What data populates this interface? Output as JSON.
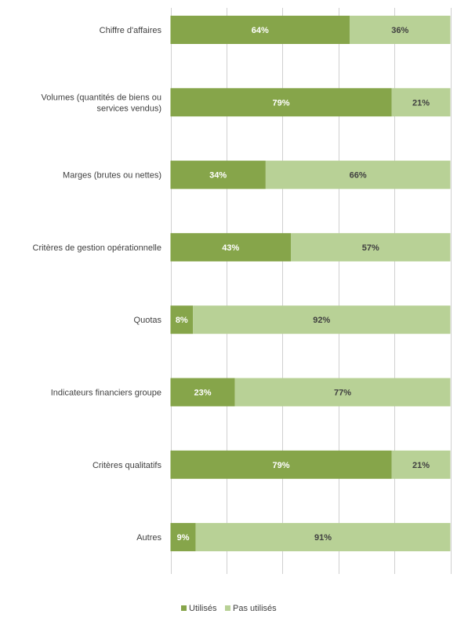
{
  "chart_data": {
    "type": "bar",
    "orientation": "horizontal",
    "stacked": true,
    "percent_stacked": true,
    "categories": [
      "Chiffre d'affaires",
      "Volumes (quantités de biens ou services vendus)",
      "Marges (brutes ou nettes)",
      "Critères de gestion opérationnelle",
      "Quotas",
      "Indicateurs financiers groupe",
      "Critères qualitatifs",
      "Autres"
    ],
    "series": [
      {
        "name": "Utilisés",
        "color": "#86a54a",
        "label_color": "#ffffff",
        "values": [
          64,
          79,
          34,
          43,
          8,
          23,
          79,
          9
        ],
        "labels": [
          "64%",
          "79%",
          "34%",
          "43%",
          "8%",
          "23%",
          "79%",
          "9%"
        ]
      },
      {
        "name": "Pas utilisés",
        "color": "#b8d196",
        "label_color": "#404040",
        "values": [
          36,
          21,
          66,
          57,
          92,
          77,
          21,
          91
        ],
        "labels": [
          "36%",
          "21%",
          "66%",
          "57%",
          "92%",
          "77%",
          "21%",
          "91%"
        ]
      }
    ],
    "xlim": [
      0,
      100
    ],
    "grid": true,
    "legend": "bottom-center",
    "title": "",
    "xlabel": "",
    "ylabel": ""
  }
}
